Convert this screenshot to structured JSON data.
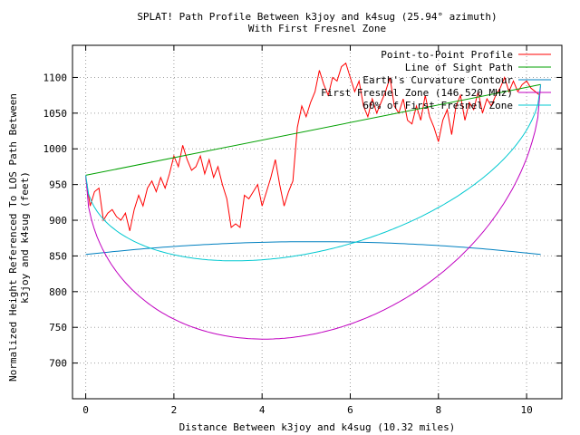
{
  "chart_data": {
    "type": "line",
    "title": "SPLAT! Path Profile Between k3joy and k4sug (25.94° azimuth)",
    "subtitle": "With First Fresnel Zone",
    "xlabel": "Distance Between k3joy and k4sug (10.32 miles)",
    "ylabel_line1": "Normalized Height Referenced To LOS Path Between",
    "ylabel_line2": "k3joy and k4sug (feet)",
    "xlim": [
      -0.3,
      10.8
    ],
    "ylim": [
      650,
      1145
    ],
    "xticks": [
      "0",
      "2",
      "4",
      "6",
      "8",
      "10"
    ],
    "yticks": [
      "700",
      "750",
      "800",
      "850",
      "900",
      "950",
      "1000",
      "1050",
      "1100"
    ],
    "grid": true,
    "legend_position": "top-right",
    "series": [
      {
        "name": "Point-to-Point Profile",
        "color": "#ff0000",
        "x": [
          0.0,
          0.1,
          0.2,
          0.3,
          0.4,
          0.5,
          0.6,
          0.7,
          0.8,
          0.9,
          1.0,
          1.1,
          1.2,
          1.3,
          1.4,
          1.5,
          1.6,
          1.7,
          1.8,
          1.9,
          2.0,
          2.1,
          2.2,
          2.3,
          2.4,
          2.5,
          2.6,
          2.7,
          2.8,
          2.9,
          3.0,
          3.1,
          3.2,
          3.3,
          3.4,
          3.5,
          3.6,
          3.7,
          3.8,
          3.9,
          4.0,
          4.1,
          4.2,
          4.3,
          4.4,
          4.5,
          4.6,
          4.7,
          4.8,
          4.9,
          5.0,
          5.1,
          5.2,
          5.3,
          5.4,
          5.5,
          5.6,
          5.7,
          5.8,
          5.9,
          6.0,
          6.1,
          6.2,
          6.3,
          6.4,
          6.5,
          6.6,
          6.7,
          6.8,
          6.9,
          7.0,
          7.1,
          7.2,
          7.3,
          7.4,
          7.5,
          7.6,
          7.7,
          7.8,
          7.9,
          8.0,
          8.1,
          8.2,
          8.3,
          8.4,
          8.5,
          8.6,
          8.7,
          8.8,
          8.9,
          9.0,
          9.1,
          9.2,
          9.3,
          9.4,
          9.5,
          9.6,
          9.7,
          9.8,
          9.9,
          10.0,
          10.1,
          10.2,
          10.3
        ],
        "y": [
          960,
          920,
          940,
          945,
          900,
          910,
          915,
          905,
          900,
          910,
          885,
          915,
          935,
          920,
          945,
          955,
          940,
          960,
          945,
          965,
          990,
          975,
          1005,
          985,
          970,
          975,
          990,
          965,
          985,
          960,
          975,
          950,
          930,
          890,
          895,
          890,
          935,
          930,
          940,
          950,
          920,
          940,
          960,
          985,
          950,
          920,
          940,
          955,
          1030,
          1060,
          1045,
          1065,
          1080,
          1110,
          1090,
          1075,
          1100,
          1095,
          1115,
          1120,
          1100,
          1080,
          1095,
          1060,
          1045,
          1070,
          1050,
          1065,
          1080,
          1100,
          1060,
          1050,
          1070,
          1040,
          1035,
          1060,
          1040,
          1075,
          1045,
          1030,
          1010,
          1040,
          1055,
          1020,
          1060,
          1075,
          1040,
          1065,
          1055,
          1080,
          1050,
          1070,
          1060,
          1075,
          1085,
          1100,
          1080,
          1095,
          1080,
          1090,
          1095,
          1085,
          1080,
          1075
        ]
      },
      {
        "name": "Line of Sight Path",
        "color": "#00a000",
        "x": [
          0.0,
          10.32
        ],
        "y": [
          963,
          1090
        ]
      },
      {
        "name": "Earth's Curvature Contour",
        "color": "#0080c0",
        "curve": "parabola",
        "x": [
          0.0,
          5.16,
          10.32
        ],
        "y": [
          852,
          870,
          852
        ]
      },
      {
        "name": "First Fresnel Zone (146.520 MHz)",
        "color": "#c000c0",
        "curve": "fresnel",
        "x": [
          0.0,
          10.32
        ],
        "y": [
          963,
          1090
        ],
        "depth": 286
      },
      {
        "name": "60% of First Fresnel Zone",
        "color": "#00c8d0",
        "curve": "fresnel",
        "x": [
          0.0,
          10.32
        ],
        "y": [
          963,
          1090
        ],
        "depth": 172
      }
    ]
  }
}
